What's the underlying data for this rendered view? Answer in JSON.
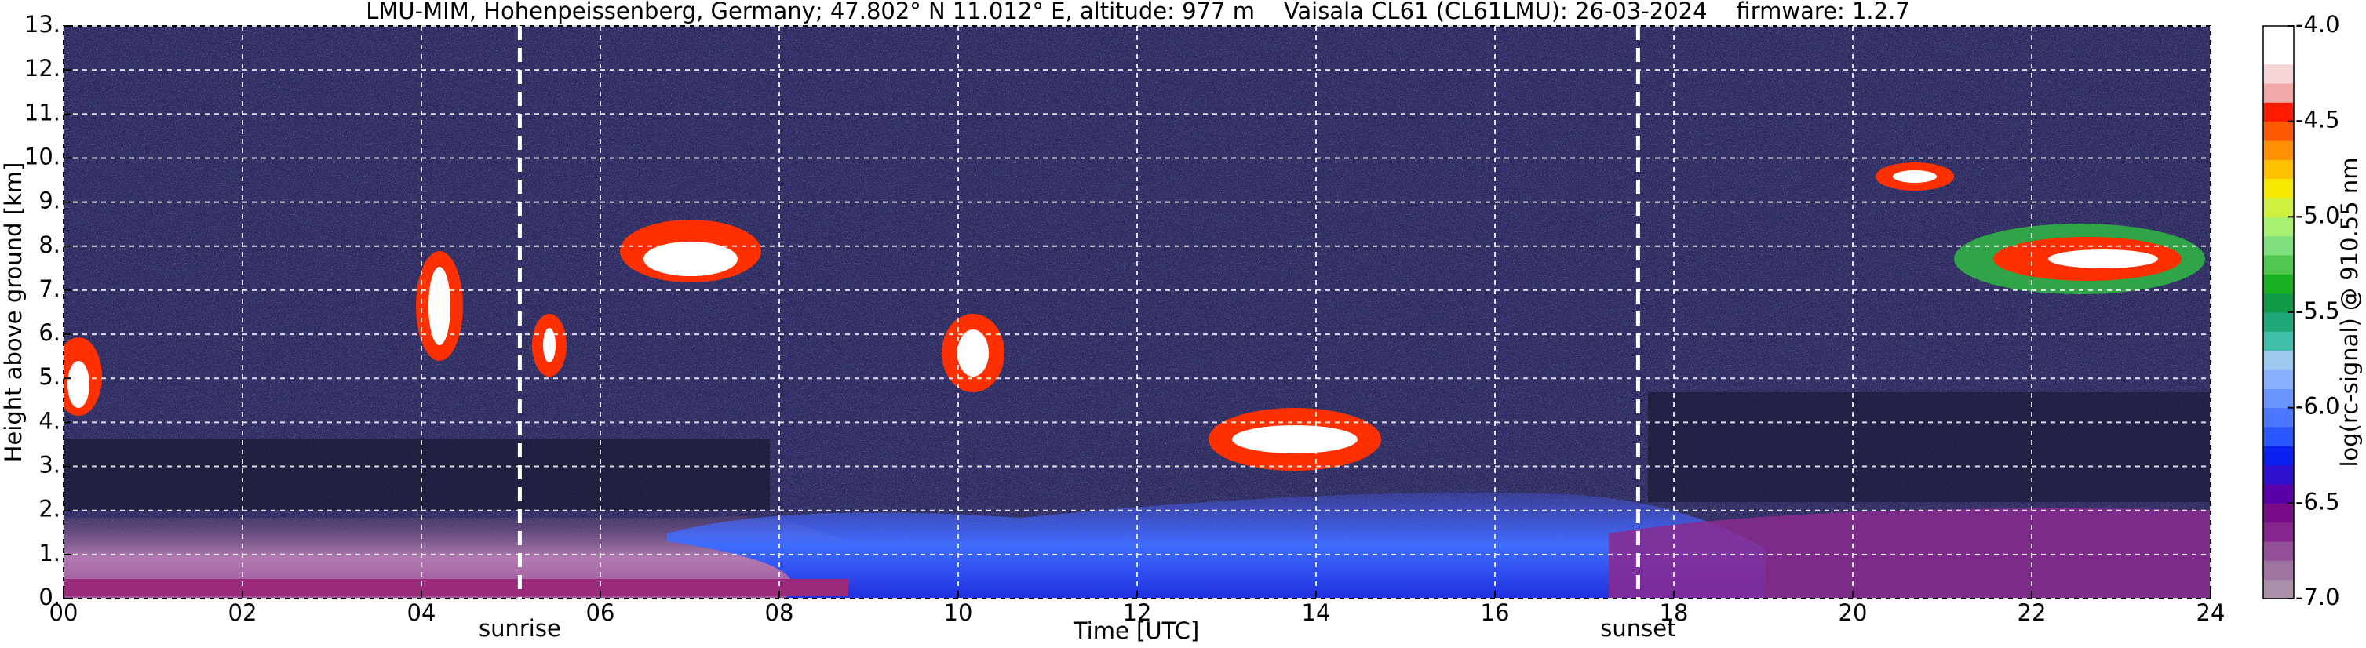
{
  "chart_data": {
    "type": "heatmap",
    "title": "LMU-MIM, Hohenpeissenberg, Germany; 47.802° N 11.012° E, altitude: 977 m    Vaisala CL61 (CL61LMU): 26-03-2024    firmware: 1.2.7",
    "xlabel": "Time [UTC]",
    "ylabel": "Height above ground [km]",
    "xlim": [
      0,
      24
    ],
    "xticks": [
      {
        "value": 0,
        "label": "00"
      },
      {
        "value": 2,
        "label": "02"
      },
      {
        "value": 4,
        "label": "04"
      },
      {
        "value": 6,
        "label": "06"
      },
      {
        "value": 8,
        "label": "08"
      },
      10,
      12,
      14,
      16,
      18,
      20,
      22,
      24
    ],
    "ylim": [
      0,
      13
    ],
    "yticks": [
      {
        "value": 0,
        "label": "0."
      },
      {
        "value": 1,
        "label": "1."
      },
      {
        "value": 2,
        "label": "2."
      },
      {
        "value": 3,
        "label": "3."
      },
      {
        "value": 4,
        "label": "4."
      },
      {
        "value": 5,
        "label": "5."
      },
      {
        "value": 6,
        "label": "6."
      },
      {
        "value": 7,
        "label": "7."
      },
      {
        "value": 8,
        "label": "8."
      },
      {
        "value": 9,
        "label": "9."
      },
      {
        "value": 10,
        "label": "10."
      },
      {
        "value": 11,
        "label": "11."
      },
      {
        "value": 12,
        "label": "12."
      },
      {
        "value": 13,
        "label": "13."
      }
    ],
    "grid": true,
    "annotations": [
      {
        "x": 5.1,
        "label": "sunrise"
      },
      {
        "x": 17.6,
        "label": "sunset"
      }
    ],
    "colorbar": {
      "label": "log(rc-signal) @ 910.55 nm",
      "lim": [
        -7,
        -4
      ],
      "ticks": [
        {
          "value": -7,
          "label": "-7.0"
        },
        {
          "value": -6.5,
          "label": "-6.5"
        },
        {
          "value": -6,
          "label": "-6.0"
        },
        {
          "value": -5.5,
          "label": "-5.5"
        },
        {
          "value": -5,
          "label": "-5.0"
        },
        {
          "value": -4.5,
          "label": "-4.5"
        },
        {
          "value": -4,
          "label": "-4.0"
        }
      ],
      "colors": [
        "#a98fa9",
        "#9e74a0",
        "#934f96",
        "#86258c",
        "#790c88",
        "#5a00a8",
        "#3010d0",
        "#0a20f0",
        "#2a55ff",
        "#4a78ff",
        "#6a95ff",
        "#88b0ff",
        "#9fc8f0",
        "#40c0a8",
        "#20a878",
        "#109a48",
        "#18b020",
        "#50c850",
        "#80e080",
        "#a8f070",
        "#d0f040",
        "#f8e800",
        "#ffc000",
        "#ff9000",
        "#ff5a00",
        "#ff1a00",
        "#f0a8a8",
        "#f4d4d4",
        "#ffffff",
        "#ffffff"
      ]
    }
  }
}
